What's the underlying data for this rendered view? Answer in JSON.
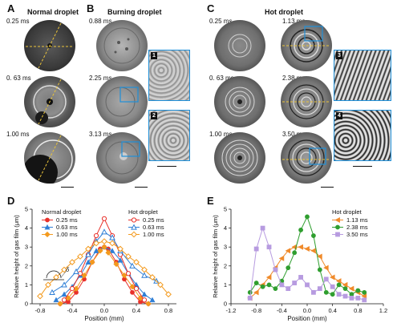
{
  "panels": {
    "A": {
      "letter": "A",
      "title": "Normal droplet",
      "times": [
        "0.25 ms",
        "0. 63 ms",
        "1.00 ms"
      ]
    },
    "B": {
      "letter": "B",
      "title": "Burning droplet",
      "times": [
        "0.88 ms",
        "2.25 ms",
        "3.13 ms"
      ],
      "insets": [
        "1",
        "2"
      ]
    },
    "C": {
      "letter": "C",
      "title": "Hot droplet",
      "times_left": [
        "0.25 ms",
        "0. 63 ms",
        "1.00 ms"
      ],
      "times_right": [
        "1.13 ms",
        "2.38 ms",
        "3.50 ms"
      ],
      "insets": [
        "3",
        "4"
      ]
    },
    "D": {
      "letter": "D"
    },
    "E": {
      "letter": "E"
    }
  },
  "chart_data": [
    {
      "type": "line",
      "xlabel": "Position (mm)",
      "ylabel": "Relative height of gas film (μm)",
      "xlim": [
        -0.9,
        0.9
      ],
      "ylim": [
        0,
        5
      ],
      "xticks": [
        "-0.8",
        "-0.4",
        "0.0",
        "0.4",
        "0.8"
      ],
      "yticks": [
        "0",
        "1",
        "2",
        "3",
        "4",
        "5"
      ],
      "legend_groups": [
        {
          "title": "Normal droplet",
          "placement": "top-left"
        },
        {
          "title": "Hot droplet",
          "placement": "top-right"
        }
      ],
      "annotation": "δ",
      "series": [
        {
          "name": "0.25 ms",
          "group": "Normal droplet",
          "color": "#e8302a",
          "marker": "circle-filled",
          "x": [
            -0.55,
            -0.45,
            -0.35,
            -0.25,
            -0.15,
            -0.05,
            0.0,
            0.05,
            0.15,
            0.25,
            0.35,
            0.45,
            0.55
          ],
          "y": [
            0.0,
            0.1,
            0.6,
            1.3,
            2.2,
            2.9,
            3.0,
            2.9,
            2.2,
            1.3,
            0.6,
            0.1,
            0.0
          ]
        },
        {
          "name": "0.63 ms",
          "group": "Normal droplet",
          "color": "#2f7fd6",
          "marker": "triangle-filled",
          "x": [
            -0.6,
            -0.5,
            -0.4,
            -0.3,
            -0.2,
            -0.1,
            0.0,
            0.1,
            0.2,
            0.3,
            0.4,
            0.5,
            0.6
          ],
          "y": [
            0.2,
            0.5,
            0.9,
            1.5,
            2.2,
            2.8,
            3.0,
            2.8,
            2.3,
            1.6,
            1.0,
            0.5,
            0.2
          ]
        },
        {
          "name": "1.00 ms",
          "group": "Normal droplet",
          "color": "#f39a1e",
          "marker": "diamond-filled",
          "x": [
            -0.55,
            -0.45,
            -0.35,
            -0.25,
            -0.15,
            -0.05,
            0.0,
            0.05,
            0.15,
            0.25,
            0.35,
            0.45,
            0.55
          ],
          "y": [
            0.0,
            0.3,
            0.8,
            1.5,
            2.2,
            2.8,
            3.0,
            2.7,
            2.1,
            1.5,
            0.9,
            0.3,
            0.0
          ]
        },
        {
          "name": "0.25 ms",
          "group": "Hot droplet",
          "color": "#e8302a",
          "marker": "circle-open",
          "x": [
            -0.5,
            -0.4,
            -0.3,
            -0.2,
            -0.1,
            0.0,
            0.1,
            0.2,
            0.3,
            0.4,
            0.5
          ],
          "y": [
            0.2,
            0.8,
            1.6,
            2.6,
            3.6,
            4.5,
            3.6,
            2.6,
            1.6,
            0.8,
            0.2
          ]
        },
        {
          "name": "0.63 ms",
          "group": "Hot droplet",
          "color": "#2f7fd6",
          "marker": "triangle-open",
          "x": [
            -0.65,
            -0.5,
            -0.35,
            -0.2,
            -0.1,
            0.0,
            0.1,
            0.2,
            0.35,
            0.5,
            0.65
          ],
          "y": [
            0.6,
            1.0,
            1.7,
            2.6,
            3.3,
            3.8,
            3.5,
            2.8,
            2.0,
            1.5,
            1.2
          ]
        },
        {
          "name": "1.00 ms",
          "group": "Hot droplet",
          "color": "#f39a1e",
          "marker": "diamond-open",
          "x": [
            -0.8,
            -0.7,
            -0.6,
            -0.5,
            -0.4,
            -0.3,
            -0.2,
            -0.1,
            0.0,
            0.1,
            0.2,
            0.3,
            0.4,
            0.5,
            0.6,
            0.7,
            0.8
          ],
          "y": [
            0.4,
            1.0,
            1.4,
            1.8,
            2.2,
            2.5,
            2.9,
            3.2,
            3.3,
            3.2,
            2.9,
            2.5,
            2.2,
            1.8,
            1.4,
            1.0,
            0.5
          ]
        }
      ]
    },
    {
      "type": "line",
      "xlabel": "Position (mm)",
      "ylabel": "Relative height of gas film (μm)",
      "xlim": [
        -1.2,
        1.2
      ],
      "ylim": [
        0,
        5
      ],
      "xticks": [
        "-1.2",
        "-0.8",
        "-0.4",
        "0.0",
        "0.4",
        "0.8",
        "1.2"
      ],
      "yticks": [
        "0",
        "1",
        "2",
        "3",
        "4",
        "5"
      ],
      "legend_title": "Hot droplet",
      "legend_placement": "top-right",
      "series": [
        {
          "name": "1.13 ms",
          "color": "#f08a2a",
          "marker": "triangle-left",
          "x": [
            -0.9,
            -0.8,
            -0.7,
            -0.6,
            -0.5,
            -0.4,
            -0.3,
            -0.2,
            -0.1,
            0.0,
            0.1,
            0.2,
            0.3,
            0.4,
            0.5,
            0.6,
            0.7,
            0.8,
            0.9
          ],
          "y": [
            0.3,
            0.6,
            1.0,
            1.4,
            1.9,
            2.4,
            2.8,
            3.0,
            3.0,
            2.9,
            2.8,
            2.5,
            1.9,
            1.4,
            1.2,
            1.0,
            0.8,
            0.6,
            0.4
          ]
        },
        {
          "name": "2.38 ms",
          "color": "#2f9e2f",
          "marker": "circle-filled",
          "x": [
            -0.9,
            -0.8,
            -0.7,
            -0.6,
            -0.5,
            -0.4,
            -0.3,
            -0.2,
            -0.1,
            0.0,
            0.1,
            0.2,
            0.3,
            0.4,
            0.5,
            0.6,
            0.7,
            0.8,
            0.9
          ],
          "y": [
            0.6,
            1.1,
            0.9,
            1.0,
            0.8,
            1.2,
            1.9,
            2.7,
            3.9,
            4.6,
            3.6,
            1.8,
            0.6,
            0.5,
            1.0,
            0.8,
            0.5,
            0.7,
            0.6
          ]
        },
        {
          "name": "3.50 ms",
          "color": "#b79be0",
          "marker": "square-filled",
          "x": [
            -0.9,
            -0.8,
            -0.7,
            -0.6,
            -0.5,
            -0.4,
            -0.3,
            -0.2,
            -0.1,
            0.0,
            0.1,
            0.2,
            0.3,
            0.4,
            0.5,
            0.6,
            0.7,
            0.8,
            0.9
          ],
          "y": [
            0.3,
            2.9,
            4.0,
            3.0,
            1.8,
            1.0,
            0.8,
            1.1,
            1.4,
            1.0,
            0.6,
            0.8,
            1.3,
            0.9,
            0.5,
            0.4,
            0.3,
            0.3,
            0.2
          ]
        }
      ]
    }
  ]
}
